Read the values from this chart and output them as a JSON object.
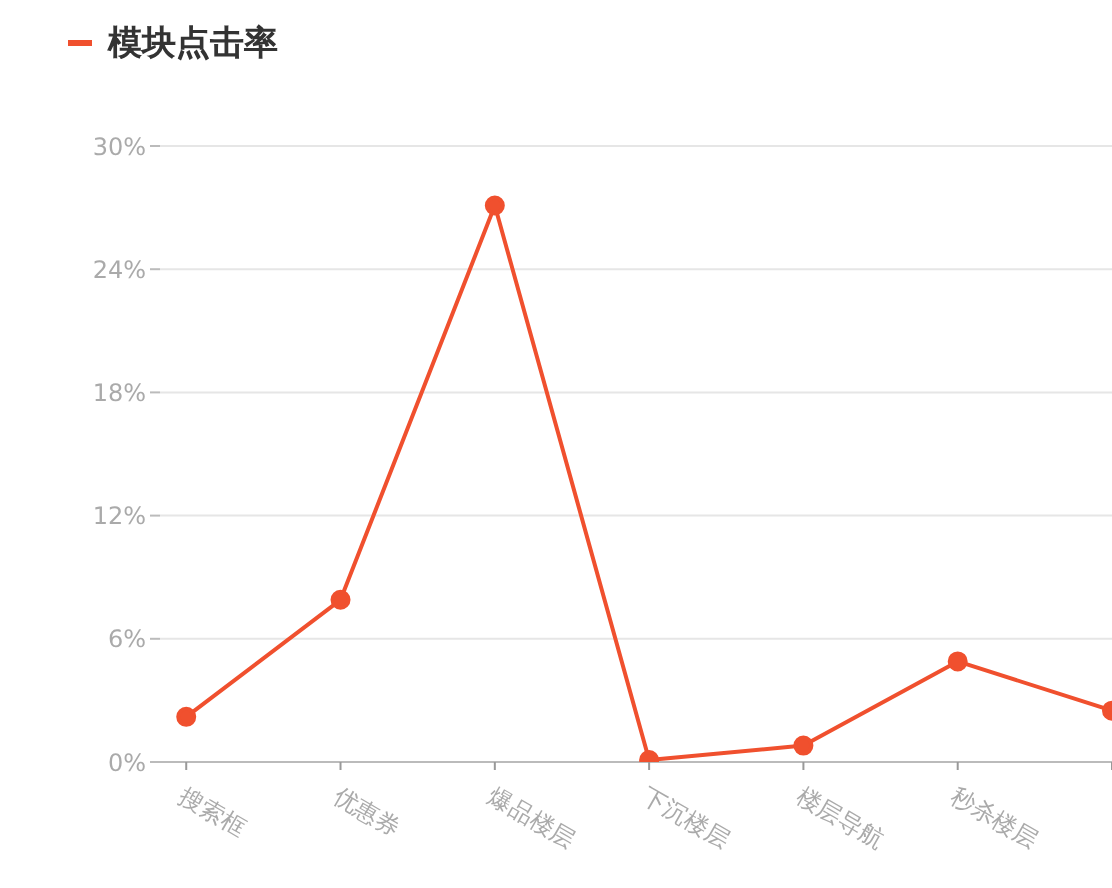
{
  "chart_data": {
    "type": "line",
    "categories": [
      "搜索框",
      "优惠券",
      "爆品楼层",
      "下沉楼层",
      "楼层导航",
      "秒杀楼层",
      null
    ],
    "series": [
      {
        "name": "模块点击率",
        "color": "#f0502e",
        "values": [
          2.2,
          7.9,
          27.1,
          0.1,
          0.8,
          4.9,
          2.5
        ]
      }
    ],
    "ylim": [
      0,
      30
    ],
    "yticks": [
      {
        "value": 0,
        "label": "0%"
      },
      {
        "value": 6,
        "label": "6%"
      },
      {
        "value": 12,
        "label": "12%"
      },
      {
        "value": 18,
        "label": "18%"
      },
      {
        "value": 24,
        "label": "24%"
      },
      {
        "value": 30,
        "label": "30%"
      }
    ],
    "grid": "y",
    "legend": "top left",
    "marker": "circle",
    "line_style": "solid"
  }
}
